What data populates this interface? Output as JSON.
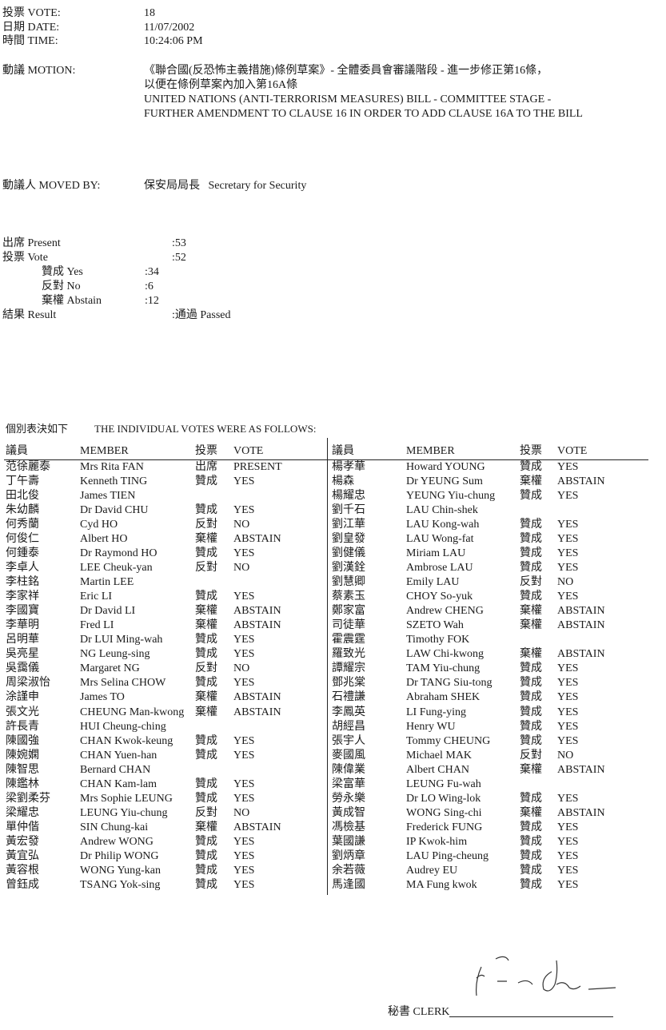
{
  "header": {
    "vote_label": "投票 VOTE:",
    "vote_value": "18",
    "date_label": "日期 DATE:",
    "date_value": "11/07/2002",
    "time_label": "時間 TIME:",
    "time_value": "10:24:06 PM"
  },
  "motion": {
    "label": "動議 MOTION:",
    "lines": [
      "《聯合國(反恐怖主義措施)條例草案》- 全體委員會審議階段 - 進一步修正第16條，",
      "以便在條例草案內加入第16A條",
      "UNITED NATIONS (ANTI-TERRORISM MEASURES) BILL - COMMITTEE STAGE -",
      "FURTHER AMENDMENT TO CLAUSE 16 IN ORDER TO ADD CLAUSE 16A TO THE BILL"
    ]
  },
  "moved_by": {
    "label": "動議人 MOVED BY:",
    "value": "保安局局長   Secretary for Security"
  },
  "summary": {
    "present_label": "出席 Present",
    "present_value": ":53",
    "vote_label": "投票 Vote",
    "vote_value": ":52",
    "yes_label": "贊成 Yes",
    "yes_value": ":34",
    "no_label": "反對 No",
    "no_value": ":6",
    "abstain_label": "棄權 Abstain",
    "abstain_value": ":12",
    "result_label": "結果 Result",
    "result_value": ":通過 Passed"
  },
  "individual_heading": {
    "zh": "個別表決如下",
    "en": "THE INDIVIDUAL VOTES WERE AS FOLLOWS:"
  },
  "table_headers": {
    "member_zh": "議員",
    "member_en": "MEMBER",
    "vote_zh": "投票",
    "vote_en": "VOTE"
  },
  "left_rows": [
    [
      "范徐麗泰",
      "Mrs Rita FAN",
      "出席",
      "PRESENT"
    ],
    [
      "丁午壽",
      "Kenneth TING",
      "贊成",
      "YES"
    ],
    [
      "田北俊",
      "James TIEN",
      "",
      ""
    ],
    [
      "朱幼麟",
      "Dr David CHU",
      "贊成",
      "YES"
    ],
    [
      "何秀蘭",
      "Cyd HO",
      "反對",
      "NO"
    ],
    [
      "何俊仁",
      "Albert HO",
      "棄權",
      "ABSTAIN"
    ],
    [
      "何鍾泰",
      "Dr Raymond HO",
      "贊成",
      "YES"
    ],
    [
      "李卓人",
      "LEE Cheuk-yan",
      "反對",
      "NO"
    ],
    [
      "李柱銘",
      "Martin LEE",
      "",
      ""
    ],
    [
      "李家祥",
      "Eric LI",
      "贊成",
      "YES"
    ],
    [
      "李國寶",
      "Dr David LI",
      "棄權",
      "ABSTAIN"
    ],
    [
      "李華明",
      "Fred LI",
      "棄權",
      "ABSTAIN"
    ],
    [
      "呂明華",
      "Dr LUI Ming-wah",
      "贊成",
      "YES"
    ],
    [
      "吳亮星",
      "NG Leung-sing",
      "贊成",
      "YES"
    ],
    [
      "吳靄儀",
      "Margaret NG",
      "反對",
      "NO"
    ],
    [
      "周梁淑怡",
      "Mrs Selina CHOW",
      "贊成",
      "YES"
    ],
    [
      "涂謹申",
      "James TO",
      "棄權",
      "ABSTAIN"
    ],
    [
      "張文光",
      "CHEUNG Man-kwong",
      "棄權",
      "ABSTAIN"
    ],
    [
      "許長青",
      "HUI Cheung-ching",
      "",
      ""
    ],
    [
      "陳國強",
      "CHAN Kwok-keung",
      "贊成",
      "YES"
    ],
    [
      "陳婉嫻",
      "CHAN Yuen-han",
      "贊成",
      "YES"
    ],
    [
      "陳智思",
      "Bernard CHAN",
      "",
      ""
    ],
    [
      "陳鑑林",
      "CHAN Kam-lam",
      "贊成",
      "YES"
    ],
    [
      "梁劉柔芬",
      "Mrs Sophie LEUNG",
      "贊成",
      "YES"
    ],
    [
      "梁耀忠",
      "LEUNG Yiu-chung",
      "反對",
      "NO"
    ],
    [
      "單仲偕",
      "SIN Chung-kai",
      "棄權",
      "ABSTAIN"
    ],
    [
      "黃宏發",
      "Andrew WONG",
      "贊成",
      "YES"
    ],
    [
      "黃宜弘",
      "Dr Philip WONG",
      "贊成",
      "YES"
    ],
    [
      "黃容根",
      "WONG Yung-kan",
      "贊成",
      "YES"
    ],
    [
      "曾鈺成",
      "TSANG Yok-sing",
      "贊成",
      "YES"
    ]
  ],
  "right_rows": [
    [
      "楊孝華",
      "Howard YOUNG",
      "贊成",
      "YES"
    ],
    [
      "楊森",
      "Dr YEUNG Sum",
      "棄權",
      "ABSTAIN"
    ],
    [
      "楊耀忠",
      "YEUNG Yiu-chung",
      "贊成",
      "YES"
    ],
    [
      "劉千石",
      "LAU Chin-shek",
      "",
      ""
    ],
    [
      "劉江華",
      "LAU Kong-wah",
      "贊成",
      "YES"
    ],
    [
      "劉皇發",
      "LAU Wong-fat",
      "贊成",
      "YES"
    ],
    [
      "劉健儀",
      "Miriam LAU",
      "贊成",
      "YES"
    ],
    [
      "劉漢銓",
      "Ambrose LAU",
      "贊成",
      "YES"
    ],
    [
      "劉慧卿",
      "Emily LAU",
      "反對",
      "NO"
    ],
    [
      "蔡素玉",
      "CHOY So-yuk",
      "贊成",
      "YES"
    ],
    [
      "鄭家富",
      "Andrew CHENG",
      "棄權",
      "ABSTAIN"
    ],
    [
      "司徒華",
      "SZETO Wah",
      "棄權",
      "ABSTAIN"
    ],
    [
      "霍震霆",
      "Timothy FOK",
      "",
      ""
    ],
    [
      "羅致光",
      "LAW Chi-kwong",
      "棄權",
      "ABSTAIN"
    ],
    [
      "譚耀宗",
      "TAM Yiu-chung",
      "贊成",
      "YES"
    ],
    [
      "鄧兆棠",
      "Dr TANG Siu-tong",
      "贊成",
      "YES"
    ],
    [
      "石禮謙",
      "Abraham SHEK",
      "贊成",
      "YES"
    ],
    [
      "李鳳英",
      "LI Fung-ying",
      "贊成",
      "YES"
    ],
    [
      "胡經昌",
      "Henry WU",
      "贊成",
      "YES"
    ],
    [
      "張宇人",
      "Tommy CHEUNG",
      "贊成",
      "YES"
    ],
    [
      "麥國風",
      "Michael MAK",
      "反對",
      "NO"
    ],
    [
      "陳偉業",
      "Albert CHAN",
      "棄權",
      "ABSTAIN"
    ],
    [
      "梁富華",
      "LEUNG Fu-wah",
      "",
      ""
    ],
    [
      "勞永樂",
      "Dr LO Wing-lok",
      "贊成",
      "YES"
    ],
    [
      "黃成智",
      "WONG Sing-chi",
      "棄權",
      "ABSTAIN"
    ],
    [
      "馮檢基",
      "Frederick FUNG",
      "贊成",
      "YES"
    ],
    [
      "葉國謙",
      "IP Kwok-him",
      "贊成",
      "YES"
    ],
    [
      "劉炳章",
      "LAU Ping-cheung",
      "贊成",
      "YES"
    ],
    [
      "余若薇",
      "Audrey EU",
      "贊成",
      "YES"
    ],
    [
      "馬逢國",
      "MA Fung kwok",
      "贊成",
      "YES"
    ]
  ],
  "clerk": {
    "label": "秘書 CLERK"
  }
}
